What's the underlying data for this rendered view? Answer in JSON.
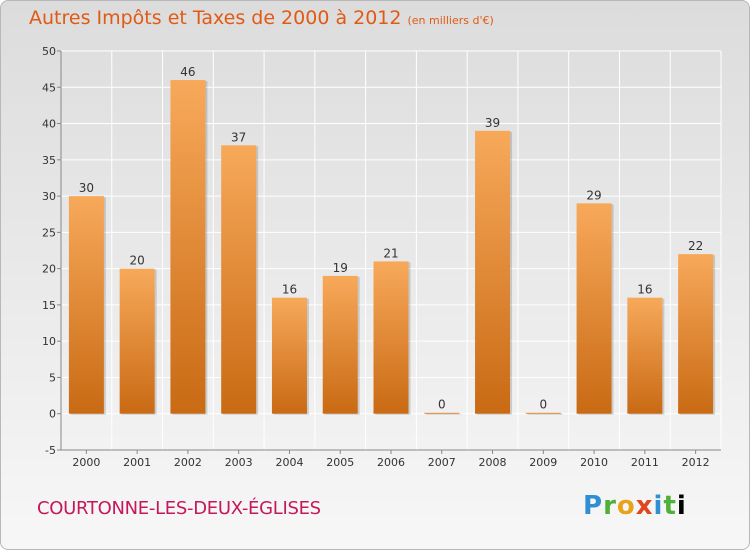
{
  "header": {
    "title": "Autres Impôts et Taxes de 2000 à 2012",
    "unit": "(en milliers d'€)"
  },
  "footer": {
    "location": "COURTONNE-LES-DEUX-ÉGLISES",
    "logo_letters": [
      "P",
      "r",
      "o",
      "x",
      "i",
      "t",
      "i"
    ]
  },
  "colors": {
    "title": "#e05a14",
    "location": "#c4185c",
    "bar_top": "#f7a95a",
    "bar_bottom": "#c96a14",
    "grid": "#ffffff",
    "axis": "#888888"
  },
  "chart_data": {
    "type": "bar",
    "title": "Autres Impôts et Taxes de 2000 à 2012",
    "subtitle": "(en milliers d'€)",
    "xlabel": "",
    "ylabel": "",
    "categories": [
      "2000",
      "2001",
      "2002",
      "2003",
      "2004",
      "2005",
      "2006",
      "2007",
      "2008",
      "2009",
      "2010",
      "2011",
      "2012"
    ],
    "values": [
      30,
      20,
      46,
      37,
      16,
      19,
      21,
      0,
      39,
      0,
      29,
      16,
      22
    ],
    "ylim": [
      -5,
      50
    ],
    "yticks": [
      -5,
      0,
      5,
      10,
      15,
      20,
      25,
      30,
      35,
      40,
      45,
      50
    ],
    "grid": true,
    "legend": "none"
  }
}
